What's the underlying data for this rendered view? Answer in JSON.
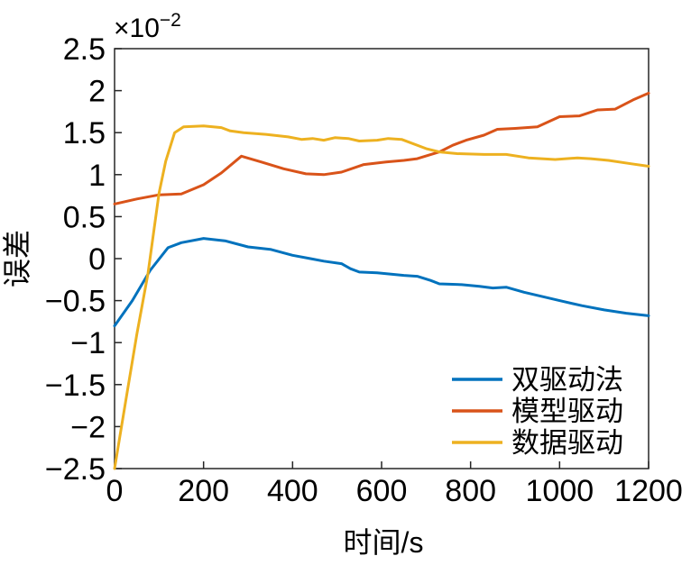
{
  "figure": {
    "background": "#ffffff",
    "axis_color": "#262626",
    "text_color": "#000000",
    "exponent": {
      "base": "×10",
      "power": "−2"
    }
  },
  "chart_data": {
    "type": "line",
    "title": "",
    "xlabel": "时间/s",
    "ylabel": "误差",
    "y_multiplier_label": "×10⁻²",
    "xlim": [
      0,
      1200
    ],
    "ylim_e2": [
      -2.5,
      2.5
    ],
    "grid": false,
    "legend_position": "inside-bottom-right",
    "legend_box": false,
    "x_axis": {
      "tick_values": [
        0,
        200,
        400,
        600,
        800,
        1000,
        1200
      ],
      "tick_labels": [
        "0",
        "200",
        "400",
        "600",
        "800",
        "1000",
        "1200"
      ]
    },
    "y_axis": {
      "tick_values": [
        2.5,
        2,
        1.5,
        1,
        0.5,
        0,
        -0.5,
        -1,
        -1.5,
        -2,
        -2.5
      ],
      "tick_labels": [
        "2.5",
        "2",
        "1.5",
        "1",
        "0.5",
        "0",
        "−0.5",
        "−1",
        "−1.5",
        "−2",
        "−2.5"
      ]
    },
    "series": [
      {
        "name": "双驱动法",
        "color": "#0072BD",
        "x": [
          0,
          40,
          80,
          120,
          150,
          200,
          250,
          300,
          350,
          400,
          440,
          470,
          510,
          530,
          550,
          590,
          650,
          680,
          710,
          730,
          780,
          820,
          850,
          880,
          920,
          960,
          1000,
          1050,
          1100,
          1150,
          1200
        ],
        "y_e2": [
          -0.8,
          -0.5,
          -0.14,
          0.13,
          0.19,
          0.24,
          0.21,
          0.14,
          0.11,
          0.04,
          0.0,
          -0.03,
          -0.06,
          -0.12,
          -0.16,
          -0.17,
          -0.2,
          -0.21,
          -0.26,
          -0.3,
          -0.31,
          -0.33,
          -0.35,
          -0.34,
          -0.4,
          -0.45,
          -0.5,
          -0.56,
          -0.61,
          -0.65,
          -0.68
        ]
      },
      {
        "name": "模型驱动",
        "color": "#D95319",
        "x": [
          0,
          50,
          100,
          150,
          200,
          240,
          285,
          330,
          380,
          430,
          470,
          510,
          560,
          610,
          650,
          680,
          730,
          760,
          790,
          830,
          860,
          900,
          950,
          1000,
          1045,
          1085,
          1125,
          1165,
          1200
        ],
        "y_e2": [
          0.65,
          0.71,
          0.76,
          0.77,
          0.88,
          1.02,
          1.22,
          1.15,
          1.07,
          1.01,
          1.0,
          1.03,
          1.12,
          1.15,
          1.17,
          1.19,
          1.27,
          1.35,
          1.41,
          1.47,
          1.54,
          1.55,
          1.57,
          1.69,
          1.7,
          1.77,
          1.78,
          1.89,
          1.97
        ]
      },
      {
        "name": "数据驱动",
        "color": "#EDB120",
        "x": [
          0,
          25,
          50,
          75,
          100,
          115,
          135,
          155,
          200,
          240,
          260,
          290,
          340,
          390,
          420,
          445,
          470,
          495,
          525,
          550,
          590,
          615,
          645,
          700,
          730,
          770,
          830,
          880,
          930,
          990,
          1040,
          1070,
          1110,
          1160,
          1200
        ],
        "y_e2": [
          -2.5,
          -1.7,
          -0.9,
          -0.18,
          0.78,
          1.16,
          1.5,
          1.57,
          1.58,
          1.56,
          1.52,
          1.5,
          1.48,
          1.45,
          1.42,
          1.43,
          1.41,
          1.44,
          1.43,
          1.4,
          1.41,
          1.43,
          1.42,
          1.31,
          1.27,
          1.25,
          1.24,
          1.24,
          1.2,
          1.18,
          1.2,
          1.19,
          1.17,
          1.13,
          1.1
        ]
      }
    ]
  }
}
